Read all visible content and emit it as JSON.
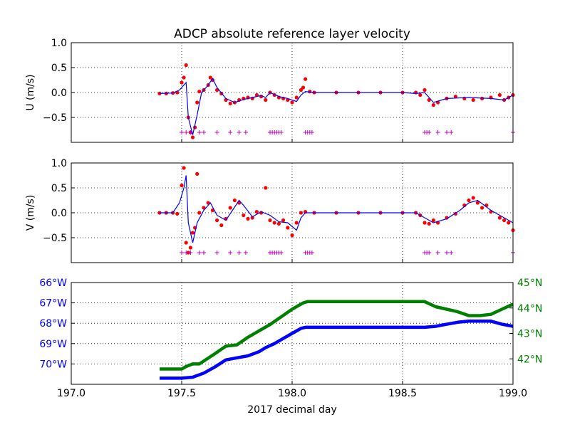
{
  "figure": {
    "title": "ADCP absolute reference layer velocity"
  },
  "colors": {
    "raw_points": "#ff0000",
    "smoothed_line": "#0000ff",
    "flag_markers": "#bf00bf",
    "lon_track": "#0000ff",
    "lat_track": "#008000",
    "grid": "#000000"
  },
  "chart_data": [
    {
      "id": "u",
      "type": "scatter",
      "ylabel": "U (m/s)",
      "xlim": [
        197.0,
        199.0
      ],
      "ylim": [
        -1.0,
        1.0
      ],
      "yticks": [
        {
          "v": 1.0,
          "label": "1.0"
        },
        {
          "v": 0.5,
          "label": "0.5"
        },
        {
          "v": 0.0,
          "label": "0.0"
        },
        {
          "v": -0.5,
          "label": "−0.5"
        }
      ],
      "grid": true,
      "series": [
        {
          "kind": "points",
          "x": [
            197.4,
            197.43,
            197.46,
            197.48,
            197.5,
            197.51,
            197.52,
            197.53,
            197.54,
            197.55,
            197.56,
            197.57,
            197.58,
            197.6,
            197.62,
            197.63,
            197.64,
            197.66,
            197.68,
            197.7,
            197.72,
            197.74,
            197.76,
            197.78,
            197.8,
            197.82,
            197.84,
            197.86,
            197.88,
            197.9,
            197.92,
            197.94,
            197.96,
            197.98,
            198.0,
            198.02,
            198.04,
            198.05,
            198.06,
            198.08,
            198.1,
            198.2,
            198.3,
            198.4,
            198.5,
            198.56,
            198.58,
            198.6,
            198.62,
            198.64,
            198.66,
            198.7,
            198.74,
            198.78,
            198.82,
            198.86,
            198.9,
            198.94,
            198.96,
            198.98,
            199.0
          ],
          "y": [
            -0.02,
            -0.02,
            -0.01,
            0.0,
            0.2,
            0.3,
            0.55,
            -0.5,
            -0.8,
            -0.9,
            -0.7,
            -0.2,
            0.02,
            0.05,
            0.15,
            0.3,
            0.25,
            0.05,
            -0.02,
            -0.15,
            -0.22,
            -0.2,
            -0.15,
            -0.12,
            -0.1,
            -0.12,
            -0.05,
            -0.08,
            -0.15,
            0.0,
            -0.05,
            -0.1,
            -0.12,
            -0.15,
            -0.2,
            -0.1,
            0.05,
            0.1,
            0.27,
            0.02,
            0.0,
            0.0,
            0.0,
            0.0,
            0.0,
            0.0,
            -0.05,
            0.05,
            -0.15,
            -0.25,
            -0.2,
            -0.12,
            -0.08,
            -0.12,
            -0.15,
            -0.12,
            -0.1,
            -0.05,
            -0.15,
            -0.1,
            -0.05
          ]
        },
        {
          "kind": "line",
          "x": [
            197.4,
            197.46,
            197.49,
            197.51,
            197.52,
            197.53,
            197.55,
            197.57,
            197.59,
            197.62,
            197.64,
            197.66,
            197.7,
            197.74,
            197.78,
            197.82,
            197.86,
            197.88,
            197.9,
            197.94,
            197.98,
            198.02,
            198.04,
            198.06,
            198.1,
            198.5,
            198.56,
            198.6,
            198.64,
            198.7,
            198.8,
            198.9,
            198.96,
            199.0
          ],
          "y": [
            -0.02,
            -0.01,
            0.05,
            0.15,
            0.2,
            -0.5,
            -0.85,
            -0.45,
            0.0,
            0.15,
            0.28,
            0.1,
            -0.12,
            -0.2,
            -0.14,
            -0.1,
            -0.06,
            -0.1,
            0.0,
            -0.08,
            -0.12,
            -0.18,
            -0.05,
            0.02,
            0.0,
            0.0,
            -0.02,
            0.0,
            -0.2,
            -0.12,
            -0.1,
            -0.12,
            -0.15,
            -0.05
          ]
        },
        {
          "kind": "markers",
          "y": -0.8,
          "x": [
            197.5,
            197.52,
            197.54,
            197.58,
            197.6,
            197.66,
            197.72,
            197.76,
            197.79,
            197.9,
            197.91,
            197.92,
            197.93,
            197.94,
            197.95,
            198.06,
            198.07,
            198.08,
            198.09,
            198.6,
            198.61,
            198.62,
            198.66,
            198.7,
            198.72,
            199.0
          ]
        }
      ]
    },
    {
      "id": "v",
      "type": "scatter",
      "ylabel": "V (m/s)",
      "xlim": [
        197.0,
        199.0
      ],
      "ylim": [
        -1.0,
        1.0
      ],
      "yticks": [
        {
          "v": 1.0,
          "label": "1.0"
        },
        {
          "v": 0.5,
          "label": "0.5"
        },
        {
          "v": 0.0,
          "label": "0.0"
        },
        {
          "v": -0.5,
          "label": "−0.5"
        }
      ],
      "grid": true,
      "series": [
        {
          "kind": "points",
          "x": [
            197.4,
            197.43,
            197.46,
            197.48,
            197.5,
            197.51,
            197.52,
            197.53,
            197.54,
            197.55,
            197.56,
            197.57,
            197.58,
            197.6,
            197.62,
            197.64,
            197.66,
            197.68,
            197.7,
            197.72,
            197.74,
            197.76,
            197.78,
            197.8,
            197.82,
            197.84,
            197.86,
            197.88,
            197.9,
            197.92,
            197.94,
            197.96,
            197.98,
            198.0,
            198.02,
            198.04,
            198.06,
            198.1,
            198.2,
            198.3,
            198.4,
            198.5,
            198.56,
            198.58,
            198.6,
            198.62,
            198.64,
            198.66,
            198.7,
            198.74,
            198.78,
            198.8,
            198.82,
            198.84,
            198.86,
            198.88,
            198.9,
            198.94,
            198.96,
            198.98,
            199.0
          ],
          "y": [
            0.0,
            0.0,
            0.0,
            -0.02,
            0.55,
            0.9,
            -0.6,
            -0.8,
            -0.7,
            -0.4,
            -0.3,
            0.78,
            0.0,
            0.1,
            0.2,
            0.05,
            -0.15,
            -0.25,
            -0.12,
            0.1,
            0.25,
            0.2,
            -0.05,
            -0.12,
            -0.1,
            0.02,
            0.0,
            0.5,
            -0.15,
            -0.2,
            -0.22,
            -0.15,
            -0.3,
            -0.45,
            -0.2,
            0.0,
            0.02,
            0.0,
            0.0,
            0.0,
            0.0,
            0.0,
            0.0,
            -0.05,
            -0.2,
            -0.22,
            -0.15,
            -0.2,
            -0.1,
            -0.02,
            0.15,
            0.25,
            0.3,
            0.2,
            0.1,
            0.15,
            0.02,
            -0.1,
            -0.15,
            -0.2,
            -0.35
          ]
        },
        {
          "kind": "line",
          "x": [
            197.4,
            197.46,
            197.49,
            197.51,
            197.52,
            197.53,
            197.55,
            197.57,
            197.6,
            197.63,
            197.66,
            197.7,
            197.73,
            197.76,
            197.78,
            197.82,
            197.86,
            197.9,
            197.94,
            197.98,
            198.02,
            198.04,
            198.06,
            198.1,
            198.5,
            198.56,
            198.6,
            198.64,
            198.7,
            198.76,
            198.8,
            198.84,
            198.9,
            198.96,
            199.0
          ],
          "y": [
            0.0,
            0.0,
            0.2,
            0.5,
            0.75,
            -0.2,
            -0.6,
            -0.2,
            0.05,
            0.2,
            -0.05,
            -0.15,
            0.05,
            0.25,
            0.15,
            -0.08,
            0.02,
            -0.05,
            -0.18,
            -0.2,
            -0.35,
            -0.1,
            0.0,
            0.0,
            0.0,
            0.0,
            -0.1,
            -0.2,
            -0.12,
            0.05,
            0.2,
            0.25,
            0.05,
            -0.1,
            -0.2
          ]
        },
        {
          "kind": "markers",
          "y": -0.8,
          "x": [
            197.5,
            197.52,
            197.54,
            197.58,
            197.6,
            197.66,
            197.72,
            197.76,
            197.79,
            197.9,
            197.91,
            197.92,
            197.93,
            197.94,
            197.95,
            198.06,
            198.07,
            198.08,
            198.09,
            198.6,
            198.61,
            198.62,
            198.66,
            198.7,
            198.72,
            199.0
          ]
        }
      ]
    },
    {
      "id": "position",
      "type": "line",
      "xlabel": "2017 decimal day",
      "xlim": [
        197.0,
        199.0
      ],
      "xticks": [
        {
          "v": 197.0,
          "label": "197.0"
        },
        {
          "v": 197.5,
          "label": "197.5"
        },
        {
          "v": 198.0,
          "label": "198.0"
        },
        {
          "v": 198.5,
          "label": "198.5"
        },
        {
          "v": 199.0,
          "label": "199.0"
        }
      ],
      "grid": true,
      "left_axis": {
        "ylim": [
          -71.0,
          -66.0
        ],
        "inverted": false,
        "yticks": [
          {
            "v": -66.0,
            "label": "66°W"
          },
          {
            "v": -67.0,
            "label": "67°W"
          },
          {
            "v": -68.0,
            "label": "68°W"
          },
          {
            "v": -69.0,
            "label": "69°W"
          },
          {
            "v": -70.0,
            "label": "70°W"
          }
        ]
      },
      "right_axis": {
        "ylim": [
          41.0,
          45.0
        ],
        "yticks": [
          {
            "v": 45.0,
            "label": "45°N"
          },
          {
            "v": 44.0,
            "label": "44°N"
          },
          {
            "v": 43.0,
            "label": "43°N"
          },
          {
            "v": 42.0,
            "label": "42°N"
          }
        ]
      },
      "series": [
        {
          "axis": "left",
          "x": [
            197.4,
            197.5,
            197.55,
            197.6,
            197.65,
            197.7,
            197.75,
            197.8,
            197.85,
            197.88,
            197.92,
            197.96,
            198.0,
            198.04,
            198.06,
            198.1,
            198.2,
            198.3,
            198.4,
            198.5,
            198.6,
            198.65,
            198.7,
            198.75,
            198.8,
            198.85,
            198.9,
            198.95,
            199.0
          ],
          "y": [
            -70.7,
            -70.7,
            -70.65,
            -70.45,
            -70.15,
            -69.8,
            -69.7,
            -69.6,
            -69.4,
            -69.2,
            -69.0,
            -68.75,
            -68.5,
            -68.25,
            -68.2,
            -68.2,
            -68.2,
            -68.2,
            -68.2,
            -68.2,
            -68.2,
            -68.15,
            -68.05,
            -67.95,
            -67.9,
            -67.9,
            -67.9,
            -68.05,
            -68.15
          ]
        },
        {
          "axis": "right",
          "x": [
            197.4,
            197.5,
            197.52,
            197.55,
            197.58,
            197.65,
            197.7,
            197.75,
            197.8,
            197.85,
            197.9,
            197.95,
            198.0,
            198.05,
            198.07,
            198.1,
            198.2,
            198.3,
            198.4,
            198.5,
            198.58,
            198.6,
            198.65,
            198.7,
            198.75,
            198.8,
            198.85,
            198.9,
            198.95,
            199.0
          ],
          "y": [
            41.6,
            41.6,
            41.7,
            41.8,
            41.8,
            42.2,
            42.5,
            42.55,
            42.85,
            43.1,
            43.35,
            43.65,
            43.95,
            44.2,
            44.25,
            44.25,
            44.25,
            44.25,
            44.25,
            44.25,
            44.25,
            44.25,
            44.05,
            43.95,
            43.85,
            43.7,
            43.7,
            43.75,
            43.95,
            44.15
          ]
        }
      ]
    }
  ]
}
